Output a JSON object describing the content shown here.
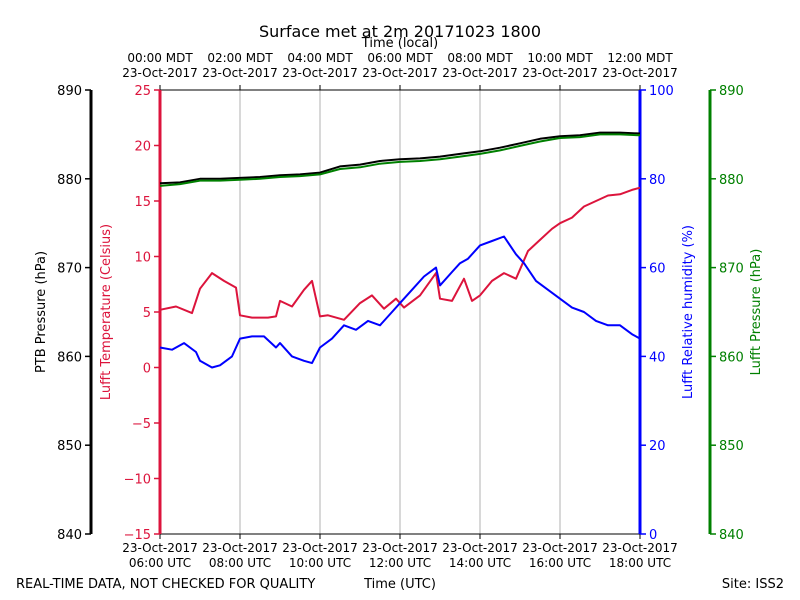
{
  "chart_data": {
    "type": "line",
    "title": "Surface met at 2m 20171023 1800",
    "top_axis_title": "Time (local)",
    "bottom_axis_title": "Time (UTC)",
    "footer_left": "REAL-TIME DATA, NOT CHECKED FOR QUALITY",
    "footer_right": "Site: ISS2",
    "x_range_hours_utc": [
      6,
      18
    ],
    "x_ticks": [
      {
        "hour": 6,
        "utc": [
          "23-Oct-2017",
          "06:00 UTC"
        ],
        "local": [
          "00:00 MDT",
          "23-Oct-2017"
        ]
      },
      {
        "hour": 8,
        "utc": [
          "23-Oct-2017",
          "08:00 UTC"
        ],
        "local": [
          "02:00 MDT",
          "23-Oct-2017"
        ]
      },
      {
        "hour": 10,
        "utc": [
          "23-Oct-2017",
          "10:00 UTC"
        ],
        "local": [
          "04:00 MDT",
          "23-Oct-2017"
        ]
      },
      {
        "hour": 12,
        "utc": [
          "23-Oct-2017",
          "12:00 UTC"
        ],
        "local": [
          "06:00 MDT",
          "23-Oct-2017"
        ]
      },
      {
        "hour": 14,
        "utc": [
          "23-Oct-2017",
          "14:00 UTC"
        ],
        "local": [
          "08:00 MDT",
          "23-Oct-2017"
        ]
      },
      {
        "hour": 16,
        "utc": [
          "23-Oct-2017",
          "16:00 UTC"
        ],
        "local": [
          "10:00 MDT",
          "23-Oct-2017"
        ]
      },
      {
        "hour": 18,
        "utc": [
          "23-Oct-2017",
          "18:00 UTC"
        ],
        "local": [
          "12:00 MDT",
          "23-Oct-2017"
        ]
      }
    ],
    "axes": {
      "ptb_pressure": {
        "label": "PTB Pressure (hPa)",
        "range": [
          840,
          890
        ],
        "ticks": [
          840,
          850,
          860,
          870,
          880,
          890
        ],
        "color": "#000000"
      },
      "temperature": {
        "label": "Lufft Temperature (Celsius)",
        "range": [
          -15,
          25
        ],
        "ticks": [
          -15,
          -10,
          -5,
          0,
          5,
          10,
          15,
          20,
          25
        ],
        "color": "#dc143c"
      },
      "humidity": {
        "label": "Lufft Relative humidity (%)",
        "range": [
          0,
          100
        ],
        "ticks": [
          0,
          20,
          40,
          60,
          80,
          100
        ],
        "color": "#0000ff"
      },
      "lufft_pressure": {
        "label": "Lufft Pressure (hPa)",
        "range": [
          840,
          890
        ],
        "ticks": [
          840,
          850,
          860,
          870,
          880,
          890
        ],
        "color": "#008000"
      }
    },
    "series": [
      {
        "name": "PTB Pressure",
        "axis": "ptb_pressure",
        "color": "#000000",
        "x": [
          6.0,
          6.5,
          7.0,
          7.5,
          8.0,
          8.5,
          9.0,
          9.5,
          10.0,
          10.5,
          11.0,
          11.5,
          12.0,
          12.5,
          13.0,
          13.5,
          14.0,
          14.5,
          15.0,
          15.5,
          16.0,
          16.5,
          17.0,
          17.5,
          18.0
        ],
        "y": [
          879.5,
          879.6,
          880.0,
          880.0,
          880.1,
          880.2,
          880.4,
          880.5,
          880.7,
          881.4,
          881.6,
          882.0,
          882.2,
          882.3,
          882.5,
          882.8,
          883.1,
          883.5,
          884.0,
          884.5,
          884.8,
          884.9,
          885.2,
          885.2,
          885.1
        ]
      },
      {
        "name": "Lufft Pressure",
        "axis": "lufft_pressure",
        "color": "#008000",
        "x": [
          6.0,
          6.5,
          7.0,
          7.5,
          8.0,
          8.5,
          9.0,
          9.5,
          10.0,
          10.5,
          11.0,
          11.5,
          12.0,
          12.5,
          13.0,
          13.5,
          14.0,
          14.5,
          15.0,
          15.5,
          16.0,
          16.5,
          17.0,
          17.5,
          18.0
        ],
        "y": [
          879.2,
          879.4,
          879.8,
          879.8,
          879.9,
          880.0,
          880.2,
          880.3,
          880.5,
          881.1,
          881.3,
          881.7,
          881.9,
          882.0,
          882.2,
          882.5,
          882.8,
          883.2,
          883.7,
          884.2,
          884.6,
          884.7,
          885.0,
          885.0,
          884.9
        ]
      },
      {
        "name": "Lufft Temperature",
        "axis": "temperature",
        "color": "#dc143c",
        "x": [
          6.0,
          6.4,
          6.8,
          7.0,
          7.3,
          7.6,
          7.9,
          8.0,
          8.3,
          8.7,
          8.9,
          9.0,
          9.3,
          9.6,
          9.8,
          10.0,
          10.2,
          10.6,
          11.0,
          11.3,
          11.6,
          11.9,
          12.1,
          12.5,
          12.9,
          13.0,
          13.3,
          13.6,
          13.8,
          14.0,
          14.3,
          14.6,
          14.9,
          15.2,
          15.5,
          15.8,
          16.0,
          16.3,
          16.6,
          16.9,
          17.2,
          17.5,
          17.8,
          18.0
        ],
        "y": [
          5.2,
          5.5,
          4.9,
          7.1,
          8.5,
          7.8,
          7.2,
          4.7,
          4.5,
          4.5,
          4.6,
          6.0,
          5.5,
          7.0,
          7.8,
          4.6,
          4.7,
          4.3,
          5.8,
          6.5,
          5.3,
          6.2,
          5.4,
          6.5,
          8.5,
          6.2,
          6.0,
          8.0,
          6.0,
          6.5,
          7.8,
          8.5,
          8.0,
          10.5,
          11.5,
          12.5,
          13.0,
          13.5,
          14.5,
          15.0,
          15.5,
          15.6,
          16.0,
          16.2
        ]
      },
      {
        "name": "Lufft Relative humidity",
        "axis": "humidity",
        "color": "#0000ff",
        "x": [
          6.0,
          6.3,
          6.6,
          6.9,
          7.0,
          7.3,
          7.5,
          7.8,
          8.0,
          8.3,
          8.6,
          8.9,
          9.0,
          9.3,
          9.6,
          9.8,
          10.0,
          10.3,
          10.6,
          10.9,
          11.2,
          11.5,
          11.8,
          12.0,
          12.3,
          12.6,
          12.9,
          13.0,
          13.3,
          13.5,
          13.7,
          14.0,
          14.3,
          14.6,
          14.9,
          15.1,
          15.4,
          15.7,
          16.0,
          16.3,
          16.6,
          16.9,
          17.2,
          17.5,
          17.8,
          18.0
        ],
        "y": [
          42.0,
          41.5,
          43.0,
          41.0,
          39.0,
          37.5,
          38.0,
          40.0,
          44.0,
          44.5,
          44.5,
          42.0,
          43.0,
          40.0,
          39.0,
          38.5,
          42.0,
          44.0,
          47.0,
          46.0,
          48.0,
          47.0,
          50.0,
          52.0,
          55.0,
          58.0,
          60.0,
          56.0,
          59.0,
          61.0,
          62.0,
          65.0,
          66.0,
          67.0,
          63.0,
          61.0,
          57.0,
          55.0,
          53.0,
          51.0,
          50.0,
          48.0,
          47.0,
          47.0,
          45.0,
          44.0
        ]
      }
    ]
  }
}
